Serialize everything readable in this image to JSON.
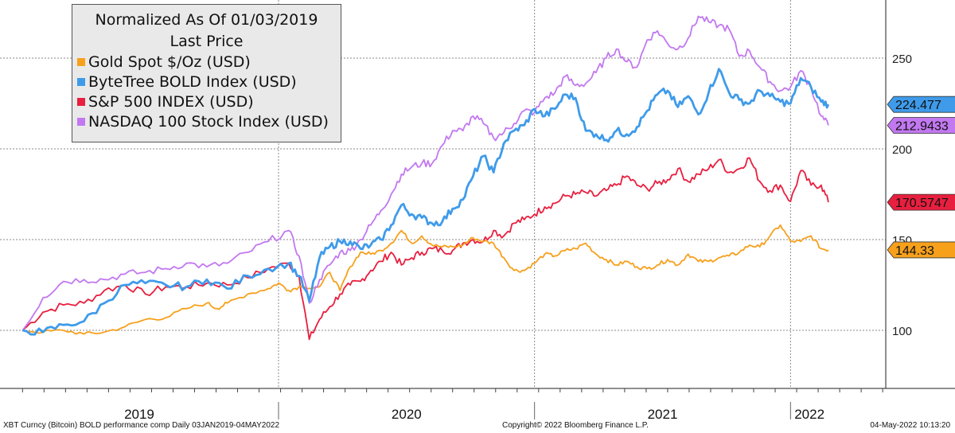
{
  "chart_data": {
    "type": "line",
    "legend": {
      "title_line1": "Normalized As Of 01/03/2019",
      "title_line2": "Last Price",
      "placement": "top-left"
    },
    "y_ticks": [
      100,
      150,
      200,
      250
    ],
    "ylim": [
      68,
      282
    ],
    "x_ticks": [
      "2019",
      "2020",
      "2021",
      "2022"
    ],
    "x_ticks_t": [
      0,
      250,
      500,
      750
    ],
    "xlim": [
      -22,
      843
    ],
    "grid": true,
    "series": [
      {
        "name": "Gold Spot $/Oz (USD)",
        "color": "#f7a01c",
        "last_label": "144.33",
        "points": [
          [
            0,
            100
          ],
          [
            20,
            99
          ],
          [
            40,
            100
          ],
          [
            60,
            98
          ],
          [
            80,
            99
          ],
          [
            100,
            102
          ],
          [
            120,
            106
          ],
          [
            140,
            107
          ],
          [
            160,
            112
          ],
          [
            180,
            115
          ],
          [
            190,
            112
          ],
          [
            200,
            115
          ],
          [
            220,
            120
          ],
          [
            240,
            123
          ],
          [
            250,
            126
          ],
          [
            260,
            122
          ],
          [
            270,
            124
          ],
          [
            290,
            124
          ],
          [
            300,
            132
          ],
          [
            310,
            122
          ],
          [
            320,
            135
          ],
          [
            330,
            143
          ],
          [
            340,
            142
          ],
          [
            350,
            144
          ],
          [
            360,
            148
          ],
          [
            370,
            155
          ],
          [
            380,
            148
          ],
          [
            390,
            152
          ],
          [
            400,
            147
          ],
          [
            410,
            146
          ],
          [
            420,
            146
          ],
          [
            430,
            147
          ],
          [
            440,
            151
          ],
          [
            450,
            149
          ],
          [
            460,
            148
          ],
          [
            470,
            140
          ],
          [
            480,
            133
          ],
          [
            490,
            133
          ],
          [
            500,
            137
          ],
          [
            510,
            142
          ],
          [
            520,
            141
          ],
          [
            530,
            144
          ],
          [
            540,
            145
          ],
          [
            550,
            148
          ],
          [
            560,
            142
          ],
          [
            570,
            139
          ],
          [
            580,
            136
          ],
          [
            590,
            138
          ],
          [
            600,
            135
          ],
          [
            610,
            134
          ],
          [
            620,
            136
          ],
          [
            630,
            139
          ],
          [
            640,
            136
          ],
          [
            650,
            142
          ],
          [
            660,
            138
          ],
          [
            670,
            138
          ],
          [
            680,
            140
          ],
          [
            690,
            141
          ],
          [
            700,
            143
          ],
          [
            710,
            147
          ],
          [
            720,
            146
          ],
          [
            730,
            152
          ],
          [
            740,
            158
          ],
          [
            750,
            149
          ],
          [
            760,
            149
          ],
          [
            770,
            152
          ],
          [
            780,
            145
          ],
          [
            787,
            144.33
          ]
        ]
      },
      {
        "name": "ByteTree BOLD Index (USD)",
        "color": "#3f9bea",
        "last_label": "224.477",
        "points": [
          [
            0,
            100
          ],
          [
            20,
            99
          ],
          [
            40,
            103
          ],
          [
            60,
            105
          ],
          [
            80,
            115
          ],
          [
            100,
            125
          ],
          [
            120,
            126
          ],
          [
            140,
            125
          ],
          [
            160,
            124
          ],
          [
            180,
            128
          ],
          [
            200,
            123
          ],
          [
            220,
            130
          ],
          [
            240,
            134
          ],
          [
            260,
            137
          ],
          [
            270,
            130
          ],
          [
            280,
            116
          ],
          [
            290,
            140
          ],
          [
            300,
            146
          ],
          [
            310,
            149
          ],
          [
            320,
            149
          ],
          [
            330,
            145
          ],
          [
            340,
            147
          ],
          [
            350,
            150
          ],
          [
            360,
            158
          ],
          [
            370,
            169
          ],
          [
            380,
            164
          ],
          [
            390,
            162
          ],
          [
            400,
            159
          ],
          [
            410,
            160
          ],
          [
            420,
            167
          ],
          [
            430,
            172
          ],
          [
            440,
            185
          ],
          [
            450,
            196
          ],
          [
            460,
            187
          ],
          [
            470,
            203
          ],
          [
            480,
            210
          ],
          [
            490,
            213
          ],
          [
            500,
            222
          ],
          [
            510,
            218
          ],
          [
            520,
            222
          ],
          [
            530,
            230
          ],
          [
            540,
            228
          ],
          [
            550,
            210
          ],
          [
            560,
            208
          ],
          [
            570,
            205
          ],
          [
            580,
            210
          ],
          [
            590,
            208
          ],
          [
            600,
            212
          ],
          [
            610,
            221
          ],
          [
            620,
            230
          ],
          [
            630,
            232
          ],
          [
            640,
            223
          ],
          [
            650,
            229
          ],
          [
            660,
            219
          ],
          [
            670,
            231
          ],
          [
            680,
            244
          ],
          [
            690,
            231
          ],
          [
            700,
            227
          ],
          [
            710,
            225
          ],
          [
            720,
            232
          ],
          [
            730,
            229
          ],
          [
            740,
            226
          ],
          [
            750,
            225
          ],
          [
            760,
            239
          ],
          [
            770,
            234
          ],
          [
            780,
            226
          ],
          [
            787,
            224.48
          ]
        ]
      },
      {
        "name": "S&P 500 INDEX (USD)",
        "color": "#e81f3f",
        "last_label": "170.5747",
        "points": [
          [
            0,
            100
          ],
          [
            20,
            110
          ],
          [
            40,
            114
          ],
          [
            60,
            115
          ],
          [
            80,
            122
          ],
          [
            100,
            125
          ],
          [
            120,
            120
          ],
          [
            140,
            124
          ],
          [
            160,
            124
          ],
          [
            180,
            126
          ],
          [
            200,
            125
          ],
          [
            220,
            129
          ],
          [
            240,
            134
          ],
          [
            260,
            137
          ],
          [
            270,
            130
          ],
          [
            280,
            95
          ],
          [
            290,
            106
          ],
          [
            300,
            113
          ],
          [
            310,
            120
          ],
          [
            320,
            125
          ],
          [
            330,
            127
          ],
          [
            340,
            133
          ],
          [
            350,
            138
          ],
          [
            360,
            143
          ],
          [
            370,
            136
          ],
          [
            380,
            140
          ],
          [
            390,
            143
          ],
          [
            400,
            145
          ],
          [
            410,
            144
          ],
          [
            420,
            144
          ],
          [
            430,
            148
          ],
          [
            440,
            150
          ],
          [
            450,
            149
          ],
          [
            460,
            155
          ],
          [
            470,
            152
          ],
          [
            480,
            159
          ],
          [
            490,
            161
          ],
          [
            500,
            164
          ],
          [
            510,
            168
          ],
          [
            520,
            170
          ],
          [
            530,
            174
          ],
          [
            540,
            175
          ],
          [
            550,
            176
          ],
          [
            560,
            174
          ],
          [
            570,
            177
          ],
          [
            580,
            180
          ],
          [
            590,
            185
          ],
          [
            600,
            180
          ],
          [
            610,
            178
          ],
          [
            620,
            181
          ],
          [
            630,
            183
          ],
          [
            640,
            189
          ],
          [
            650,
            182
          ],
          [
            660,
            186
          ],
          [
            670,
            189
          ],
          [
            680,
            194
          ],
          [
            690,
            187
          ],
          [
            700,
            189
          ],
          [
            710,
            195
          ],
          [
            720,
            182
          ],
          [
            730,
            177
          ],
          [
            740,
            180
          ],
          [
            750,
            171
          ],
          [
            760,
            188
          ],
          [
            770,
            180
          ],
          [
            780,
            180
          ],
          [
            787,
            170.57
          ]
        ]
      },
      {
        "name": "NASDAQ 100 Stock Index (USD)",
        "color": "#c278f0",
        "last_label": "212.9433",
        "points": [
          [
            0,
            100
          ],
          [
            20,
            118
          ],
          [
            40,
            127
          ],
          [
            60,
            128
          ],
          [
            80,
            128
          ],
          [
            100,
            131
          ],
          [
            120,
            132
          ],
          [
            140,
            134
          ],
          [
            160,
            137
          ],
          [
            180,
            135
          ],
          [
            200,
            137
          ],
          [
            220,
            143
          ],
          [
            240,
            149
          ],
          [
            260,
            155
          ],
          [
            270,
            141
          ],
          [
            280,
            115
          ],
          [
            290,
            128
          ],
          [
            300,
            136
          ],
          [
            310,
            143
          ],
          [
            320,
            144
          ],
          [
            330,
            150
          ],
          [
            340,
            158
          ],
          [
            350,
            166
          ],
          [
            360,
            175
          ],
          [
            370,
            186
          ],
          [
            380,
            190
          ],
          [
            390,
            192
          ],
          [
            400,
            192
          ],
          [
            410,
            202
          ],
          [
            420,
            210
          ],
          [
            430,
            210
          ],
          [
            440,
            218
          ],
          [
            450,
            214
          ],
          [
            460,
            206
          ],
          [
            470,
            209
          ],
          [
            480,
            214
          ],
          [
            490,
            221
          ],
          [
            500,
            220
          ],
          [
            510,
            228
          ],
          [
            520,
            231
          ],
          [
            530,
            240
          ],
          [
            540,
            235
          ],
          [
            550,
            236
          ],
          [
            560,
            242
          ],
          [
            570,
            250
          ],
          [
            580,
            255
          ],
          [
            590,
            248
          ],
          [
            600,
            245
          ],
          [
            610,
            260
          ],
          [
            620,
            265
          ],
          [
            630,
            258
          ],
          [
            640,
            255
          ],
          [
            650,
            261
          ],
          [
            660,
            273
          ],
          [
            670,
            270
          ],
          [
            680,
            268
          ],
          [
            690,
            266
          ],
          [
            700,
            251
          ],
          [
            710,
            254
          ],
          [
            720,
            245
          ],
          [
            730,
            237
          ],
          [
            740,
            232
          ],
          [
            750,
            234
          ],
          [
            760,
            243
          ],
          [
            770,
            234
          ],
          [
            780,
            218
          ],
          [
            787,
            212.94
          ]
        ]
      }
    ]
  },
  "footer": {
    "left": "XBT Curncy (Bitcoin) BOLD performance comp  Daily 03JAN2019-04MAY2022",
    "center": "Copyright© 2022 Bloomberg Finance L.P.",
    "right": "04-May-2022 10:13:20"
  }
}
